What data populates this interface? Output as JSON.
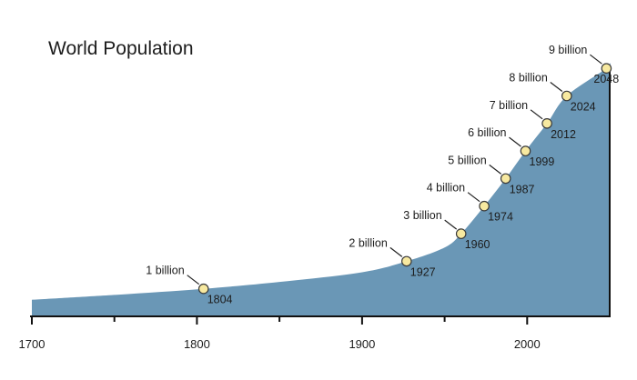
{
  "chart_data": {
    "type": "area",
    "title": "World Population",
    "xlabel": "",
    "ylabel": "",
    "xlim": [
      1700,
      2050
    ],
    "ylim": [
      0,
      9.5
    ],
    "x_ticks": [
      1700,
      1800,
      1900,
      2000
    ],
    "x_tick_labels": [
      "1700",
      "1800",
      "1900",
      "2000"
    ],
    "grid": false,
    "fill_color": "#6a97b6",
    "marker_color": "#f7e9a0",
    "milestones": [
      {
        "year": 1804,
        "population": 1,
        "label": "1 billion",
        "year_label": "1804"
      },
      {
        "year": 1927,
        "population": 2,
        "label": "2 billion",
        "year_label": "1927"
      },
      {
        "year": 1960,
        "population": 3,
        "label": "3 billion",
        "year_label": "1960"
      },
      {
        "year": 1974,
        "population": 4,
        "label": "4 billion",
        "year_label": "1974"
      },
      {
        "year": 1987,
        "population": 5,
        "label": "5 billion",
        "year_label": "1987"
      },
      {
        "year": 1999,
        "population": 6,
        "label": "6 billion",
        "year_label": "1999"
      },
      {
        "year": 2012,
        "population": 7,
        "label": "7 billion",
        "year_label": "2012"
      },
      {
        "year": 2024,
        "population": 8,
        "label": "8 billion",
        "year_label": "2024"
      },
      {
        "year": 2048,
        "population": 9,
        "label": "9 billion",
        "year_label": "2048"
      }
    ],
    "curve": [
      [
        1700,
        0.6
      ],
      [
        1750,
        0.78
      ],
      [
        1804,
        1.0
      ],
      [
        1850,
        1.25
      ],
      [
        1900,
        1.6
      ],
      [
        1927,
        2.0
      ],
      [
        1950,
        2.5
      ],
      [
        1960,
        3.0
      ],
      [
        1974,
        4.0
      ],
      [
        1987,
        5.0
      ],
      [
        1999,
        6.0
      ],
      [
        2012,
        7.0
      ],
      [
        2024,
        8.0
      ],
      [
        2048,
        9.0
      ],
      [
        2050,
        9.2
      ]
    ]
  }
}
